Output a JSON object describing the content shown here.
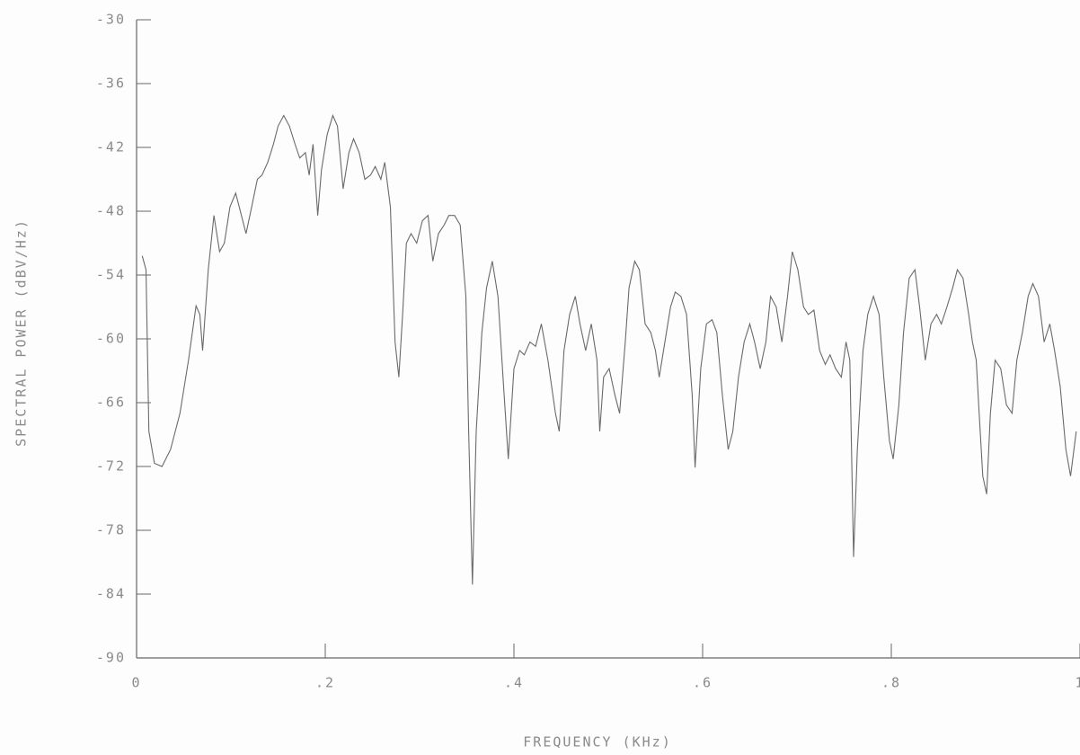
{
  "chart_data": {
    "type": "line",
    "xlabel": "FREQUENCY (KHz)",
    "ylabel": "SPECTRAL POWER (dBV/Hz)",
    "color": "#6a6a6a",
    "xlim": [
      0,
      1
    ],
    "ylim": [
      -90,
      -30
    ],
    "xticks": [
      0,
      {
        "value": 0.2,
        "label": ".2"
      },
      {
        "value": 0.4,
        "label": ".4"
      },
      {
        "value": 0.6,
        "label": ".6"
      },
      {
        "value": 0.8,
        "label": ".8"
      },
      1
    ],
    "yticks": [
      -30,
      -36,
      -42,
      -48,
      -54,
      -60,
      -66,
      -72,
      -78,
      -84,
      -90
    ],
    "x": [
      0.006,
      0.01,
      0.013,
      0.019,
      0.027,
      0.036,
      0.046,
      0.055,
      0.063,
      0.067,
      0.07,
      0.076,
      0.082,
      0.088,
      0.093,
      0.099,
      0.105,
      0.11,
      0.116,
      0.122,
      0.128,
      0.133,
      0.139,
      0.145,
      0.15,
      0.156,
      0.162,
      0.168,
      0.173,
      0.179,
      0.183,
      0.187,
      0.192,
      0.196,
      0.202,
      0.208,
      0.213,
      0.219,
      0.225,
      0.23,
      0.236,
      0.242,
      0.248,
      0.253,
      0.259,
      0.263,
      0.269,
      0.274,
      0.278,
      0.282,
      0.286,
      0.291,
      0.297,
      0.303,
      0.309,
      0.314,
      0.32,
      0.326,
      0.331,
      0.337,
      0.343,
      0.349,
      0.352,
      0.356,
      0.36,
      0.366,
      0.371,
      0.377,
      0.383,
      0.389,
      0.394,
      0.4,
      0.406,
      0.411,
      0.417,
      0.423,
      0.429,
      0.436,
      0.444,
      0.448,
      0.453,
      0.459,
      0.465,
      0.47,
      0.476,
      0.482,
      0.488,
      0.491,
      0.495,
      0.501,
      0.507,
      0.512,
      0.518,
      0.522,
      0.528,
      0.533,
      0.539,
      0.545,
      0.55,
      0.554,
      0.56,
      0.566,
      0.571,
      0.577,
      0.583,
      0.589,
      0.592,
      0.598,
      0.604,
      0.61,
      0.615,
      0.621,
      0.627,
      0.632,
      0.638,
      0.644,
      0.65,
      0.655,
      0.661,
      0.667,
      0.672,
      0.678,
      0.684,
      0.69,
      0.695,
      0.701,
      0.707,
      0.712,
      0.718,
      0.724,
      0.73,
      0.735,
      0.741,
      0.747,
      0.752,
      0.756,
      0.76,
      0.764,
      0.77,
      0.775,
      0.781,
      0.787,
      0.792,
      0.798,
      0.802,
      0.808,
      0.813,
      0.819,
      0.825,
      0.83,
      0.836,
      0.842,
      0.848,
      0.853,
      0.859,
      0.865,
      0.87,
      0.876,
      0.882,
      0.886,
      0.89,
      0.893,
      0.897,
      0.901,
      0.905,
      0.91,
      0.916,
      0.922,
      0.928,
      0.933,
      0.939,
      0.945,
      0.95,
      0.956,
      0.962,
      0.968,
      0.973,
      0.979,
      0.985,
      0.99,
      0.996
    ],
    "values": [
      -52.2,
      -53.5,
      -68.7,
      -71.7,
      -72,
      -70.4,
      -67,
      -62,
      -56.9,
      -57.7,
      -61.1,
      -53.5,
      -48.4,
      -51.8,
      -51,
      -47.6,
      -46.3,
      -48,
      -50.1,
      -47.6,
      -45,
      -44.6,
      -43.4,
      -41.7,
      -40,
      -39,
      -40,
      -41.7,
      -43,
      -42.5,
      -44.6,
      -41.7,
      -48.4,
      -44.1,
      -40.8,
      -39,
      -40,
      -45.9,
      -42.5,
      -41.2,
      -42.5,
      -45,
      -44.6,
      -43.8,
      -45,
      -43.4,
      -47.6,
      -60.3,
      -63.6,
      -57.7,
      -51,
      -50.1,
      -51,
      -48.9,
      -48.4,
      -52.7,
      -50.1,
      -49.3,
      -48.4,
      -48.4,
      -49.3,
      -56,
      -68.7,
      -83.1,
      -68.7,
      -59.4,
      -55.2,
      -52.7,
      -56,
      -64.5,
      -71.3,
      -62.8,
      -61.1,
      -61.5,
      -60.3,
      -60.7,
      -58.6,
      -62,
      -67,
      -68.7,
      -61.1,
      -57.7,
      -56,
      -58.6,
      -61.1,
      -58.6,
      -62,
      -68.7,
      -63.6,
      -62.8,
      -65.3,
      -67,
      -60.3,
      -55.2,
      -52.7,
      -53.5,
      -58.6,
      -59.4,
      -61.1,
      -63.6,
      -60.3,
      -57,
      -55.6,
      -56,
      -57.7,
      -65.3,
      -72.1,
      -62.8,
      -58.6,
      -58.2,
      -59.4,
      -65.3,
      -70.4,
      -68.7,
      -63.6,
      -60.3,
      -58.6,
      -60.3,
      -62.8,
      -60.3,
      -56,
      -57,
      -60.3,
      -56,
      -51.8,
      -53.5,
      -57,
      -57.7,
      -57.3,
      -61.1,
      -62.4,
      -61.5,
      -62.8,
      -63.6,
      -60.3,
      -62,
      -80.5,
      -70.4,
      -61.1,
      -57.7,
      -56,
      -57.7,
      -63.6,
      -69.6,
      -71.3,
      -66.2,
      -59.4,
      -54.3,
      -53.5,
      -57,
      -62,
      -58.6,
      -57.7,
      -58.6,
      -57,
      -55.2,
      -53.5,
      -54.3,
      -57.7,
      -60.3,
      -62,
      -66.9,
      -72.9,
      -74.6,
      -67,
      -62,
      -62.8,
      -66.2,
      -67,
      -62,
      -59.4,
      -56,
      -54.8,
      -56,
      -60.3,
      -58.6,
      -61.1,
      -64.5,
      -70.4,
      -72.9,
      -68.7
    ]
  }
}
